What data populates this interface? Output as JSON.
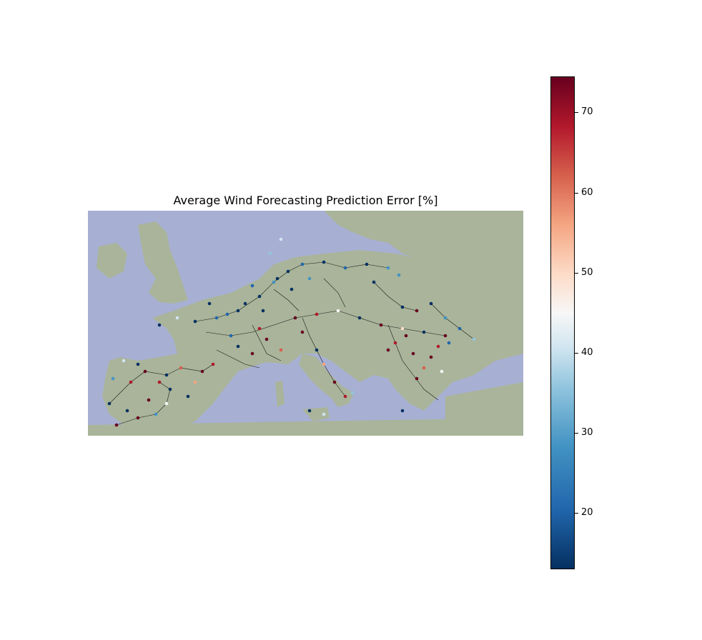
{
  "title": "Average Wind Forecasting Prediction Error [%]",
  "colorbar": {
    "min": 13,
    "max": 74.5,
    "ticks": [
      "20",
      "30",
      "40",
      "50",
      "60",
      "70"
    ],
    "tick_values": [
      20,
      30,
      40,
      50,
      60,
      70
    ],
    "colormap": "RdBu_r"
  },
  "colors": {
    "sea": "#a7b0d3",
    "land": "#a8b596",
    "low": "#053061",
    "mid": "#f7f7f7",
    "high": "#67001f",
    "edge": "#000000"
  },
  "map": {
    "region": "Europe",
    "network": "transmission grid nodes colored by error"
  }
}
